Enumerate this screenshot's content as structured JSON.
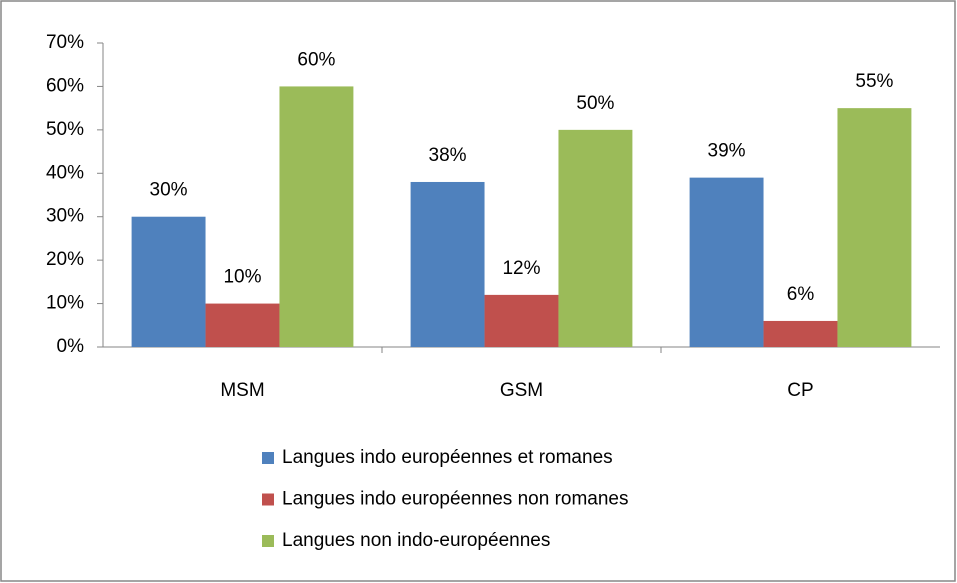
{
  "chart_data": {
    "type": "bar",
    "categories": [
      "MSM",
      "GSM",
      "CP"
    ],
    "series": [
      {
        "name": "Langues indo européennes et romanes",
        "color": "#4f81bd",
        "values": [
          30,
          38,
          39
        ],
        "value_labels": [
          "30%",
          "38%",
          "39%"
        ]
      },
      {
        "name": "Langues indo européennes non romanes",
        "color": "#c0504d",
        "values": [
          10,
          12,
          6
        ],
        "value_labels": [
          "10%",
          "12%",
          "6%"
        ]
      },
      {
        "name": "Langues non indo-européennes",
        "color": "#9bbb59",
        "values": [
          60,
          50,
          55
        ],
        "value_labels": [
          "60%",
          "50%",
          "55%"
        ]
      }
    ],
    "ylim": [
      0,
      70
    ],
    "yticks": [
      {
        "value": 0,
        "label": "0%"
      },
      {
        "value": 10,
        "label": "10%"
      },
      {
        "value": 20,
        "label": "20%"
      },
      {
        "value": 30,
        "label": "30%"
      },
      {
        "value": 40,
        "label": "40%"
      },
      {
        "value": 50,
        "label": "50%"
      },
      {
        "value": 60,
        "label": "60%"
      },
      {
        "value": 70,
        "label": "70%"
      }
    ],
    "grid": false,
    "legend": "bottom"
  }
}
